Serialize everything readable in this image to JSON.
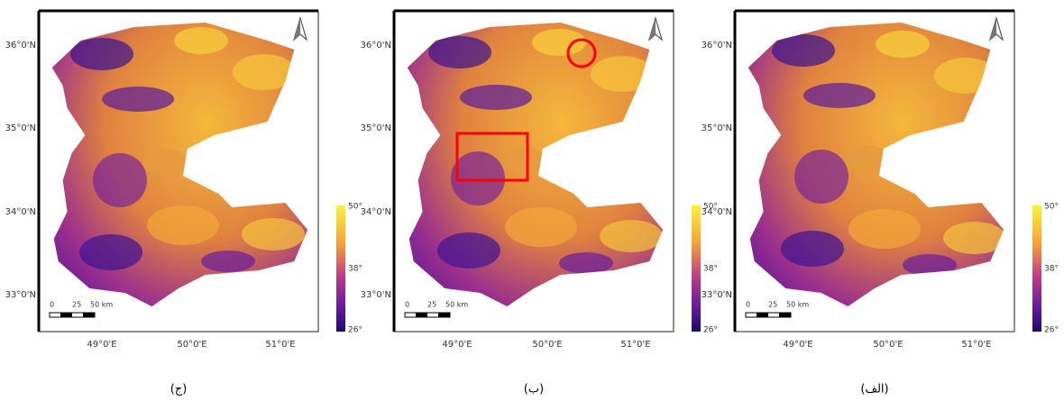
{
  "panels": [
    {
      "caption": "(ج)",
      "lat_labels": [
        "36°0'N",
        "35°0'N",
        "34°0'N",
        "33°0'N"
      ],
      "lon_labels": [
        "49°0'E",
        "50°0'E",
        "51°0'E"
      ],
      "colorbar_labels": [
        "50°",
        "38°",
        "26°"
      ],
      "scale_labels": [
        "0",
        "25",
        "50 km"
      ]
    },
    {
      "caption": "(ب)",
      "lat_labels": [
        "36°0'N",
        "35°0'N",
        "34°0'N",
        "33°0'N"
      ],
      "lon_labels": [
        "49°0'E",
        "50°0'E",
        "51°0'E"
      ],
      "colorbar_labels": [
        "50°",
        "38°",
        "26°"
      ],
      "scale_labels": [
        "0",
        "25",
        "50 km"
      ]
    },
    {
      "caption": "(الف)",
      "lat_labels": [
        "36°0'N",
        "35°0'N",
        "34°0'N",
        "33°0'N"
      ],
      "lon_labels": [
        "49°0'E",
        "50°0'E",
        "51°0'E"
      ],
      "colorbar_labels": [
        "50°",
        "38°",
        "26°"
      ],
      "scale_labels": [
        "0",
        "25",
        "50 km"
      ]
    }
  ]
}
